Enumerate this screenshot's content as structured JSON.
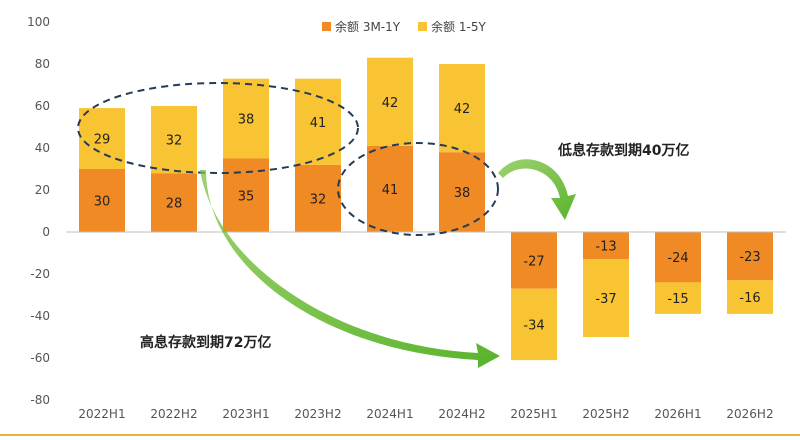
{
  "chart_data": {
    "type": "bar",
    "stacked": true,
    "categories": [
      "2022H1",
      "2022H2",
      "2023H1",
      "2023H2",
      "2024H1",
      "2024H2",
      "2025H1",
      "2025H2",
      "2026H1",
      "2026H2"
    ],
    "series": [
      {
        "name": "余额 3M-1Y",
        "color": "#f08a24",
        "values": [
          30,
          28,
          35,
          32,
          41,
          38,
          -27,
          -13,
          -24,
          -23
        ]
      },
      {
        "name": "余额 1-5Y",
        "color": "#f9c433",
        "values": [
          29,
          32,
          38,
          41,
          42,
          42,
          -34,
          -37,
          -15,
          -16
        ]
      }
    ],
    "ylim": [
      -80,
      100
    ],
    "yticks": [
      100,
      80,
      60,
      40,
      20,
      0,
      -20,
      -40,
      -60,
      -80
    ],
    "legend_position": "top-center",
    "annotations": [
      {
        "text": "低息存款到期40万亿"
      },
      {
        "text": "高息存款到期72万亿"
      }
    ]
  },
  "colors": {
    "axis": "#bfbfbf",
    "ellipse": "#243b5a",
    "arrow": "#7dc242",
    "text": "#555555"
  }
}
